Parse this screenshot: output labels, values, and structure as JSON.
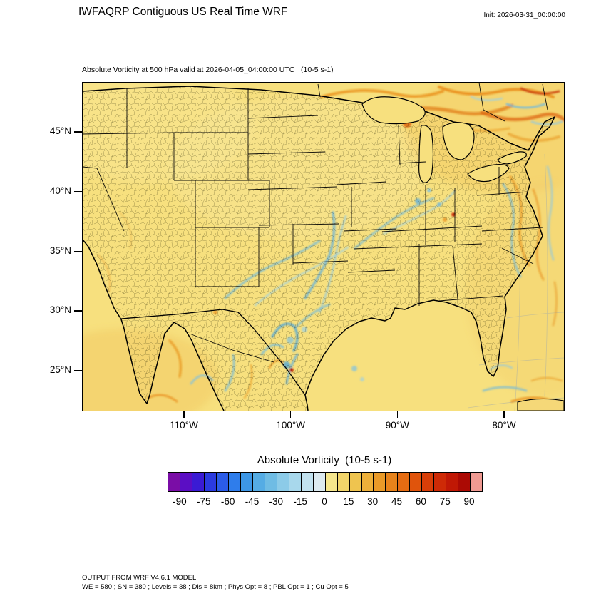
{
  "header": {
    "title": "IWFAQRP Contiguous US Real Time WRF",
    "init_label": "Init: 2026-03-31_00:00:00"
  },
  "map": {
    "subtitle": "Absolute Vorticity at 500 hPa valid at 2026-04-05_04:00:00 UTC   (10-5 s-1)",
    "lat_ticks": [
      "45°N",
      "40°N",
      "35°N",
      "30°N",
      "25°N"
    ],
    "lon_ticks": [
      "110°W",
      "100°W",
      "90°W",
      "80°W"
    ]
  },
  "colorbar": {
    "title": "Absolute Vorticity  (10-5 s-1)",
    "tick_labels": [
      "-90",
      "-75",
      "-60",
      "-45",
      "-30",
      "-15",
      "0",
      "15",
      "30",
      "45",
      "60",
      "75",
      "90"
    ],
    "colors": [
      "#7A0DA6",
      "#5B0EC4",
      "#3A1BD4",
      "#2B3BE0",
      "#2B5CE8",
      "#2F7DEB",
      "#3D97E6",
      "#55ACE4",
      "#6FBCE4",
      "#8CCBE8",
      "#A8D8EC",
      "#C2E2EF",
      "#DCEAF0",
      "#F5E68C",
      "#F2D56A",
      "#EFC44F",
      "#EDB03A",
      "#EA9A28",
      "#E8831B",
      "#E56C12",
      "#E0540C",
      "#D83E08",
      "#CE2A06",
      "#C01805",
      "#AB0A04",
      "#F09A92"
    ]
  },
  "footer": {
    "line1": "OUTPUT FROM WRF V4.6.1 MODEL",
    "line2": "WE = 580 ; SN = 380 ; Levels = 38 ; Dis = 8km ; Phys Opt = 8 ; PBL Opt = 1 ; Cu Opt = 5"
  },
  "chart_data": {
    "type": "heatmap",
    "title": "Absolute Vorticity at 500 hPa valid at 2026-04-05_04:00:00 UTC",
    "units": "10-5 s-1",
    "model": "WRF V4.6.1",
    "run_title": "IWFAQRP Contiguous US Real Time WRF",
    "init_time": "2026-03-31_00:00:00",
    "valid_time": "2026-04-05_04:00:00 UTC",
    "x": {
      "label": "longitude",
      "ticks": [
        "110°W",
        "100°W",
        "90°W",
        "80°W"
      ]
    },
    "y": {
      "label": "latitude",
      "ticks": [
        "45°N",
        "40°N",
        "35°N",
        "30°N",
        "25°N"
      ]
    },
    "colorbar": {
      "min": -97.5,
      "max": 97.5,
      "n_cells": 26,
      "tick_values": [
        -90,
        -75,
        -60,
        -45,
        -30,
        -15,
        0,
        15,
        30,
        45,
        60,
        75,
        90
      ],
      "palette": "purple-blue-cyan-pale / yellow-orange-red-pink diverging about 0"
    },
    "grid_config": {
      "WE": 580,
      "SN": 380,
      "Levels": 38,
      "Dis": "8km",
      "Phys Opt": 8,
      "PBL Opt": 1,
      "Cu Opt": 5
    },
    "field_summary": "Background absolute vorticity ~5-15 (yellow) over most of the CONUS domain; filaments of negative vorticity (blue, roughly -15 to -60) arc from central Texas through the Mississippi and Ohio valleys and along the East Coast; enhanced positive vorticity (orange/red, ~30-90) over eastern Canada, the Great Lakes area and the northwest Atlantic; mixed positive/negative filaments over northern Mexico, the Gulf of California, the western Gulf of Mexico and near Cuba; isolated red maxima near south Texas/northern Mexico and the Ohio valley."
  }
}
